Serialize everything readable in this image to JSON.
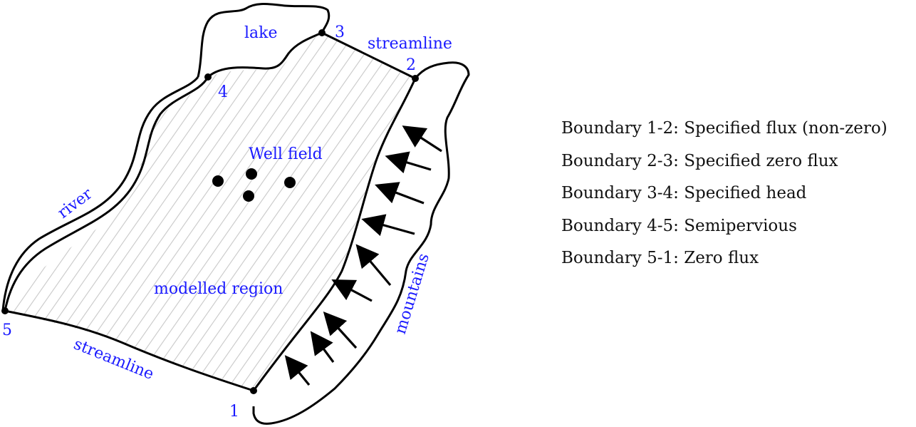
{
  "diagram": {
    "labels": {
      "lake": "lake",
      "streamline_top": "streamline",
      "river": "river",
      "well_field": "Well field",
      "modelled_region": "modelled region",
      "mountains": "mountains",
      "streamline_bottom": "streamline"
    },
    "points": {
      "p1": "1",
      "p2": "2",
      "p3": "3",
      "p4": "4",
      "p5": "5"
    },
    "label_color": "#1a1aff",
    "hatch_color": "#c8c8c8"
  },
  "legend": {
    "items": [
      "Boundary 1-2: Specified flux (non-zero)",
      "Boundary 2-3: Specified zero flux",
      "Boundary 3-4: Specified head",
      "Boundary 4-5: Semipervious",
      "Boundary 5-1: Zero flux"
    ]
  }
}
